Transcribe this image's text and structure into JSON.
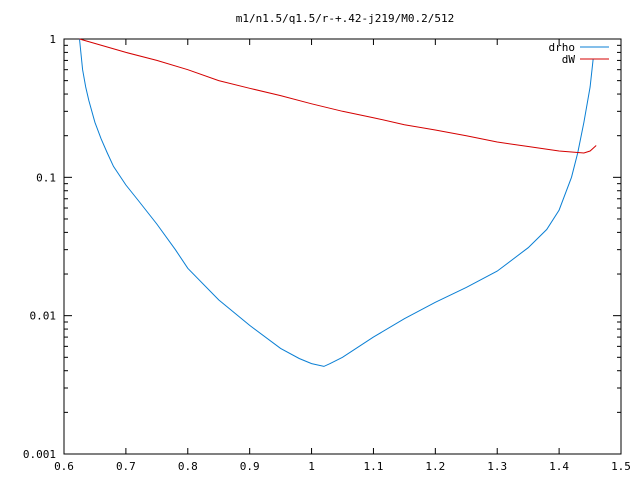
{
  "chart_data": {
    "type": "line",
    "title": "m1/n1.5/q1.5/r-+.42-j219/M0.2/512",
    "xlabel": "",
    "ylabel": "",
    "x_scale": "linear",
    "y_scale": "log",
    "xlim": [
      0.6,
      1.5
    ],
    "ylim": [
      0.001,
      1
    ],
    "x_ticks": [
      0.6,
      0.7,
      0.8,
      0.9,
      1,
      1.1,
      1.2,
      1.3,
      1.4,
      1.5
    ],
    "x_tick_labels": [
      "0.6",
      "0.7",
      "0.8",
      "0.9",
      "1",
      "1.1",
      "1.2",
      "1.3",
      "1.4",
      "1.5"
    ],
    "y_ticks": [
      0.001,
      0.01,
      0.1,
      1
    ],
    "y_tick_labels": [
      "0.001",
      "0.01",
      "0.1",
      "1"
    ],
    "grid": false,
    "legend_position": "top-right",
    "series": [
      {
        "name": "drho",
        "color": "#0a7fd4",
        "points": [
          [
            0.625,
            1.0
          ],
          [
            0.63,
            0.6
          ],
          [
            0.635,
            0.45
          ],
          [
            0.64,
            0.36
          ],
          [
            0.65,
            0.25
          ],
          [
            0.66,
            0.19
          ],
          [
            0.67,
            0.15
          ],
          [
            0.68,
            0.12
          ],
          [
            0.7,
            0.088
          ],
          [
            0.72,
            0.068
          ],
          [
            0.75,
            0.046
          ],
          [
            0.78,
            0.03
          ],
          [
            0.8,
            0.022
          ],
          [
            0.85,
            0.013
          ],
          [
            0.9,
            0.0085
          ],
          [
            0.95,
            0.0058
          ],
          [
            0.98,
            0.0049
          ],
          [
            1.0,
            0.0045
          ],
          [
            1.02,
            0.0043
          ],
          [
            1.03,
            0.0045
          ],
          [
            1.05,
            0.005
          ],
          [
            1.1,
            0.007
          ],
          [
            1.15,
            0.0095
          ],
          [
            1.2,
            0.0125
          ],
          [
            1.25,
            0.016
          ],
          [
            1.3,
            0.021
          ],
          [
            1.35,
            0.031
          ],
          [
            1.38,
            0.042
          ],
          [
            1.4,
            0.058
          ],
          [
            1.42,
            0.1
          ],
          [
            1.43,
            0.15
          ],
          [
            1.44,
            0.25
          ],
          [
            1.45,
            0.45
          ],
          [
            1.455,
            0.72
          ]
        ]
      },
      {
        "name": "dW",
        "color": "#d40000",
        "points": [
          [
            0.625,
            1.0
          ],
          [
            0.7,
            0.8
          ],
          [
            0.75,
            0.7
          ],
          [
            0.8,
            0.6
          ],
          [
            0.85,
            0.5
          ],
          [
            0.9,
            0.44
          ],
          [
            0.95,
            0.39
          ],
          [
            1.0,
            0.34
          ],
          [
            1.05,
            0.3
          ],
          [
            1.1,
            0.27
          ],
          [
            1.15,
            0.24
          ],
          [
            1.2,
            0.22
          ],
          [
            1.25,
            0.2
          ],
          [
            1.3,
            0.18
          ],
          [
            1.35,
            0.167
          ],
          [
            1.4,
            0.155
          ],
          [
            1.44,
            0.15
          ],
          [
            1.45,
            0.155
          ],
          [
            1.46,
            0.17
          ]
        ]
      }
    ]
  }
}
